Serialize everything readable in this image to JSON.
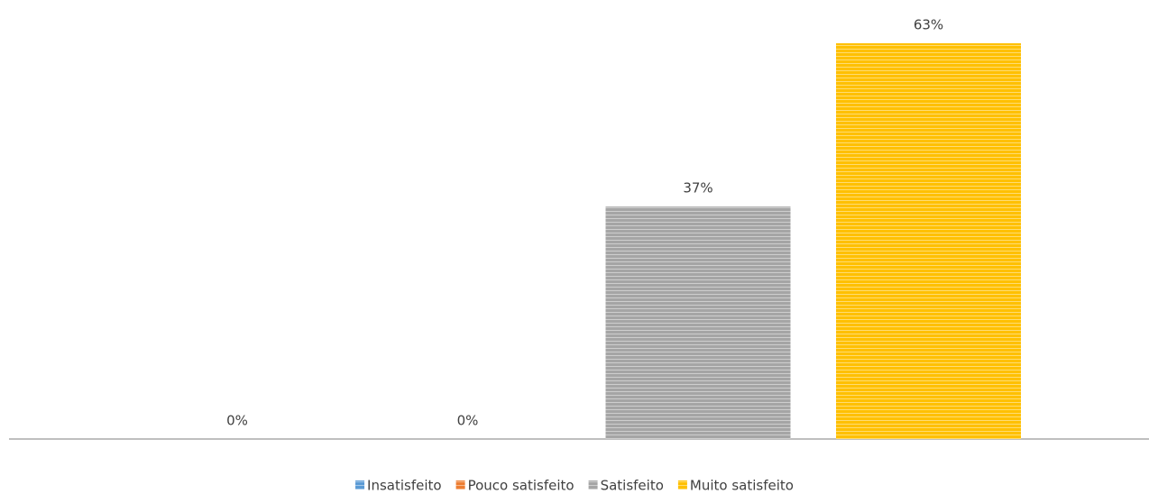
{
  "chart_data": {
    "type": "bar",
    "series": [
      {
        "name": "Insatisfeito",
        "color": "#5b9bd5",
        "values": [
          0
        ],
        "value_labels": [
          "0%"
        ]
      },
      {
        "name": "Pouco satisfeito",
        "color": "#ed7d31",
        "values": [
          0
        ],
        "value_labels": [
          "0%"
        ]
      },
      {
        "name": "Satisfeito",
        "color": "#a5a5a5",
        "values": [
          37
        ],
        "value_labels": [
          "37%"
        ]
      },
      {
        "name": "Muito satisfeito",
        "color": "#ffc000",
        "values": [
          63
        ],
        "value_labels": [
          "63%"
        ]
      }
    ],
    "legend": "bottom"
  }
}
